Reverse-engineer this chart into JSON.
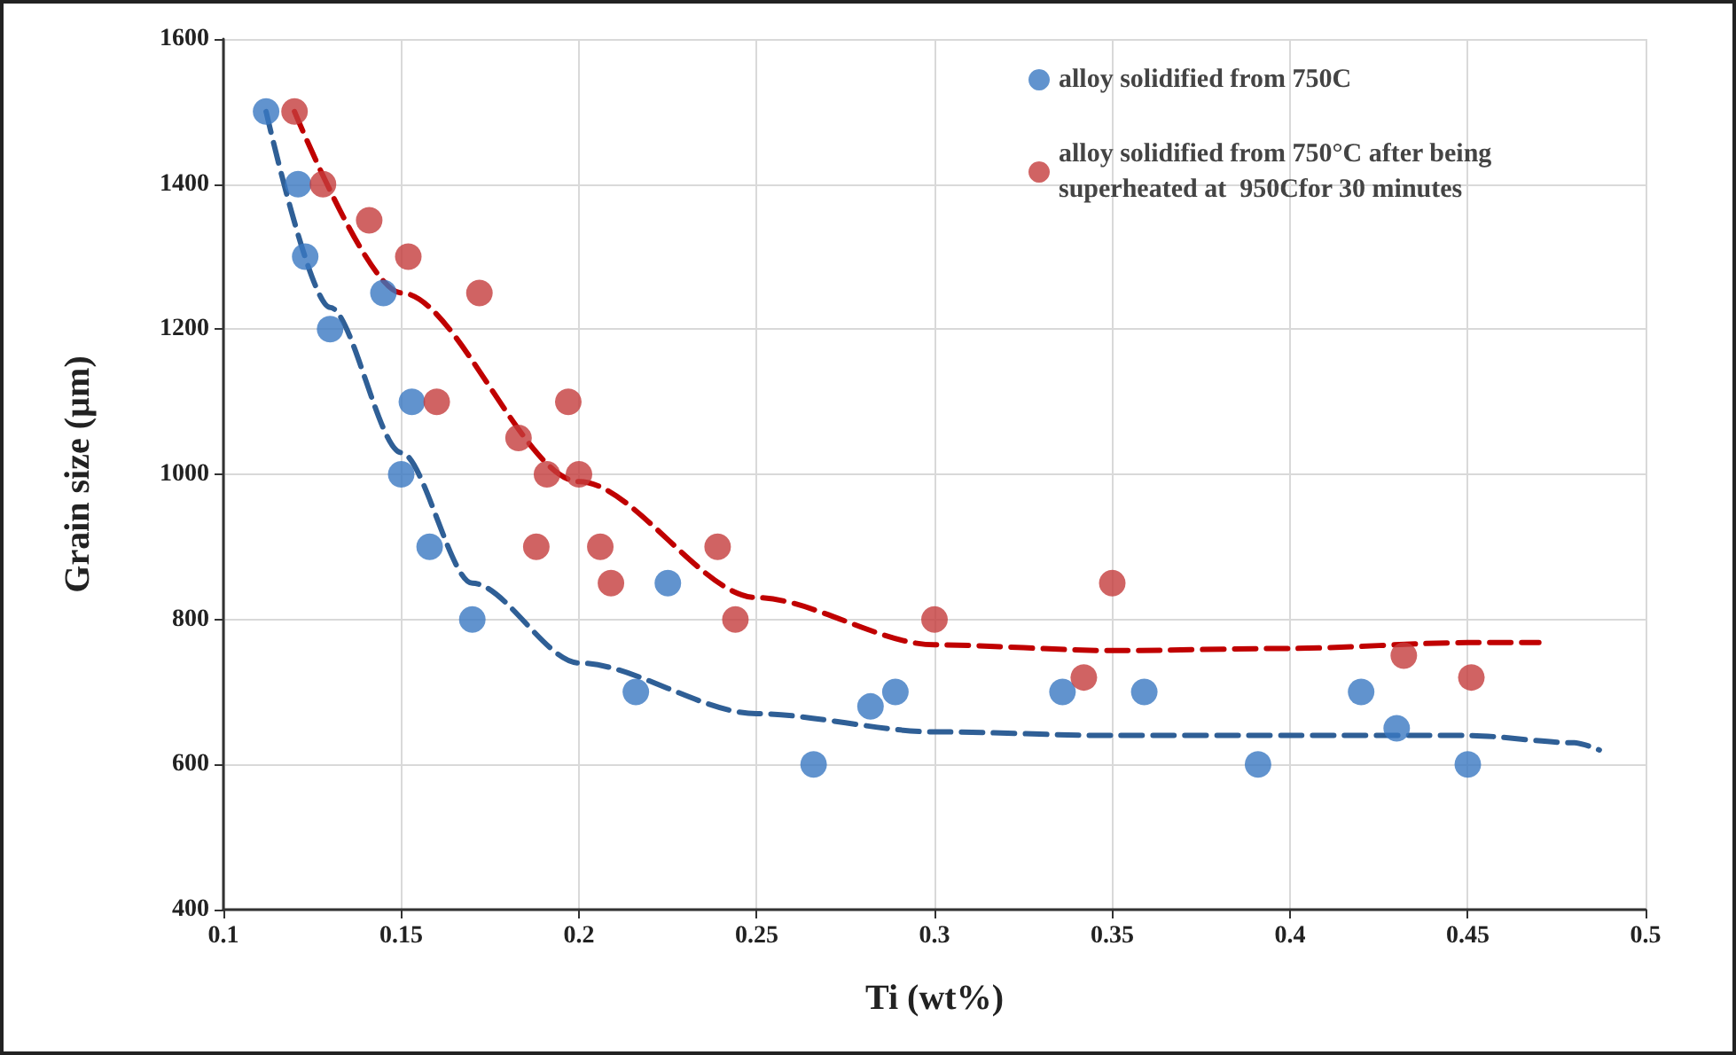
{
  "chart_data": {
    "type": "scatter",
    "xlabel": "Ti (wt%)",
    "ylabel": "Grain size (µm)",
    "xlim": [
      0.1,
      0.5
    ],
    "xticks": [
      0.1,
      0.15,
      0.2,
      0.25,
      0.3,
      0.35,
      0.4,
      0.45,
      0.5
    ],
    "ylim": [
      400,
      1600
    ],
    "yticks": [
      400,
      600,
      800,
      1000,
      1200,
      1400,
      1600
    ],
    "grid": true,
    "legend": "top right",
    "marker": "circle",
    "series": [
      {
        "name": "alloy solidified from 750C",
        "color": "#3a78c2",
        "x": [
          0.112,
          0.121,
          0.123,
          0.13,
          0.145,
          0.153,
          0.15,
          0.158,
          0.17,
          0.216,
          0.225,
          0.266,
          0.282,
          0.289,
          0.336,
          0.359,
          0.391,
          0.42,
          0.43,
          0.45
        ],
        "values": [
          1500,
          1400,
          1300,
          1200,
          1250,
          1100,
          1000,
          900,
          800,
          700,
          850,
          600,
          680,
          700,
          700,
          700,
          600,
          700,
          650,
          600
        ]
      },
      {
        "name": "alloy solidified from 750°C after being superheated at  950Cfor 30 minutes",
        "color": "#c43c3c",
        "x": [
          0.12,
          0.128,
          0.141,
          0.152,
          0.172,
          0.16,
          0.183,
          0.191,
          0.2,
          0.197,
          0.188,
          0.206,
          0.209,
          0.239,
          0.244,
          0.3,
          0.35,
          0.342,
          0.432,
          0.451
        ],
        "values": [
          1500,
          1400,
          1350,
          1300,
          1250,
          1100,
          1050,
          1000,
          1000,
          1100,
          900,
          900,
          850,
          900,
          800,
          800,
          850,
          720,
          750,
          720
        ]
      },
      {
        "type": "line",
        "marker": "none",
        "line_style": "dashed",
        "color": "#2f5f96",
        "x": [
          0.112,
          0.13,
          0.15,
          0.17,
          0.2,
          0.25,
          0.3,
          0.35,
          0.4,
          0.45,
          0.48,
          0.487
        ],
        "values": [
          1500,
          1230,
          1030,
          850,
          740,
          670,
          645,
          640,
          640,
          640,
          630,
          620
        ]
      },
      {
        "type": "line",
        "marker": "none",
        "line_style": "dashed",
        "color": "#c00000",
        "x": [
          0.12,
          0.15,
          0.2,
          0.25,
          0.3,
          0.35,
          0.4,
          0.45,
          0.47
        ],
        "values": [
          1500,
          1250,
          990,
          830,
          765,
          757,
          760,
          768,
          768
        ]
      }
    ]
  }
}
